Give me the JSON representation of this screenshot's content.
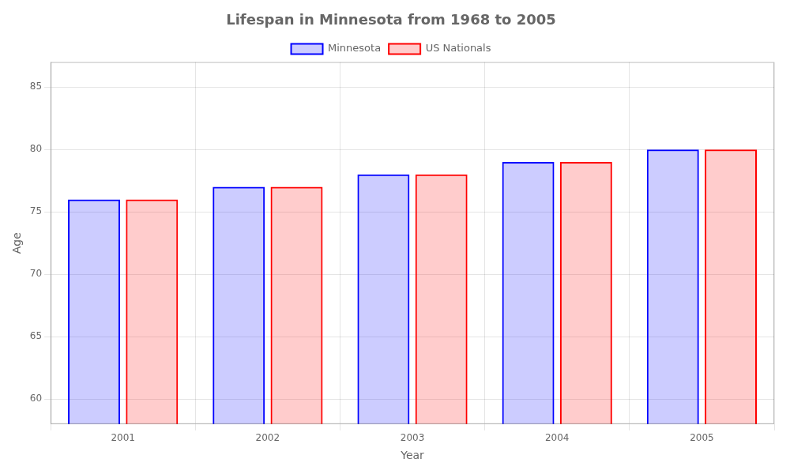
{
  "chart_data": {
    "type": "bar",
    "title": "Lifespan in Minnesota from 1968 to 2005",
    "x_label": "Year",
    "y_label": "Age",
    "categories": [
      "2001",
      "2002",
      "2003",
      "2004",
      "2005"
    ],
    "series": [
      {
        "name": "Minnesota",
        "color": "#0000ff",
        "values": [
          76,
          77,
          78,
          79,
          80
        ]
      },
      {
        "name": "US Nationals",
        "color": "#ff0000",
        "values": [
          76,
          77,
          78,
          79,
          80
        ]
      }
    ],
    "ylim": [
      58,
      87
    ],
    "yticks": [
      60,
      65,
      70,
      75,
      80,
      85
    ],
    "grid": true,
    "legend": "top"
  }
}
